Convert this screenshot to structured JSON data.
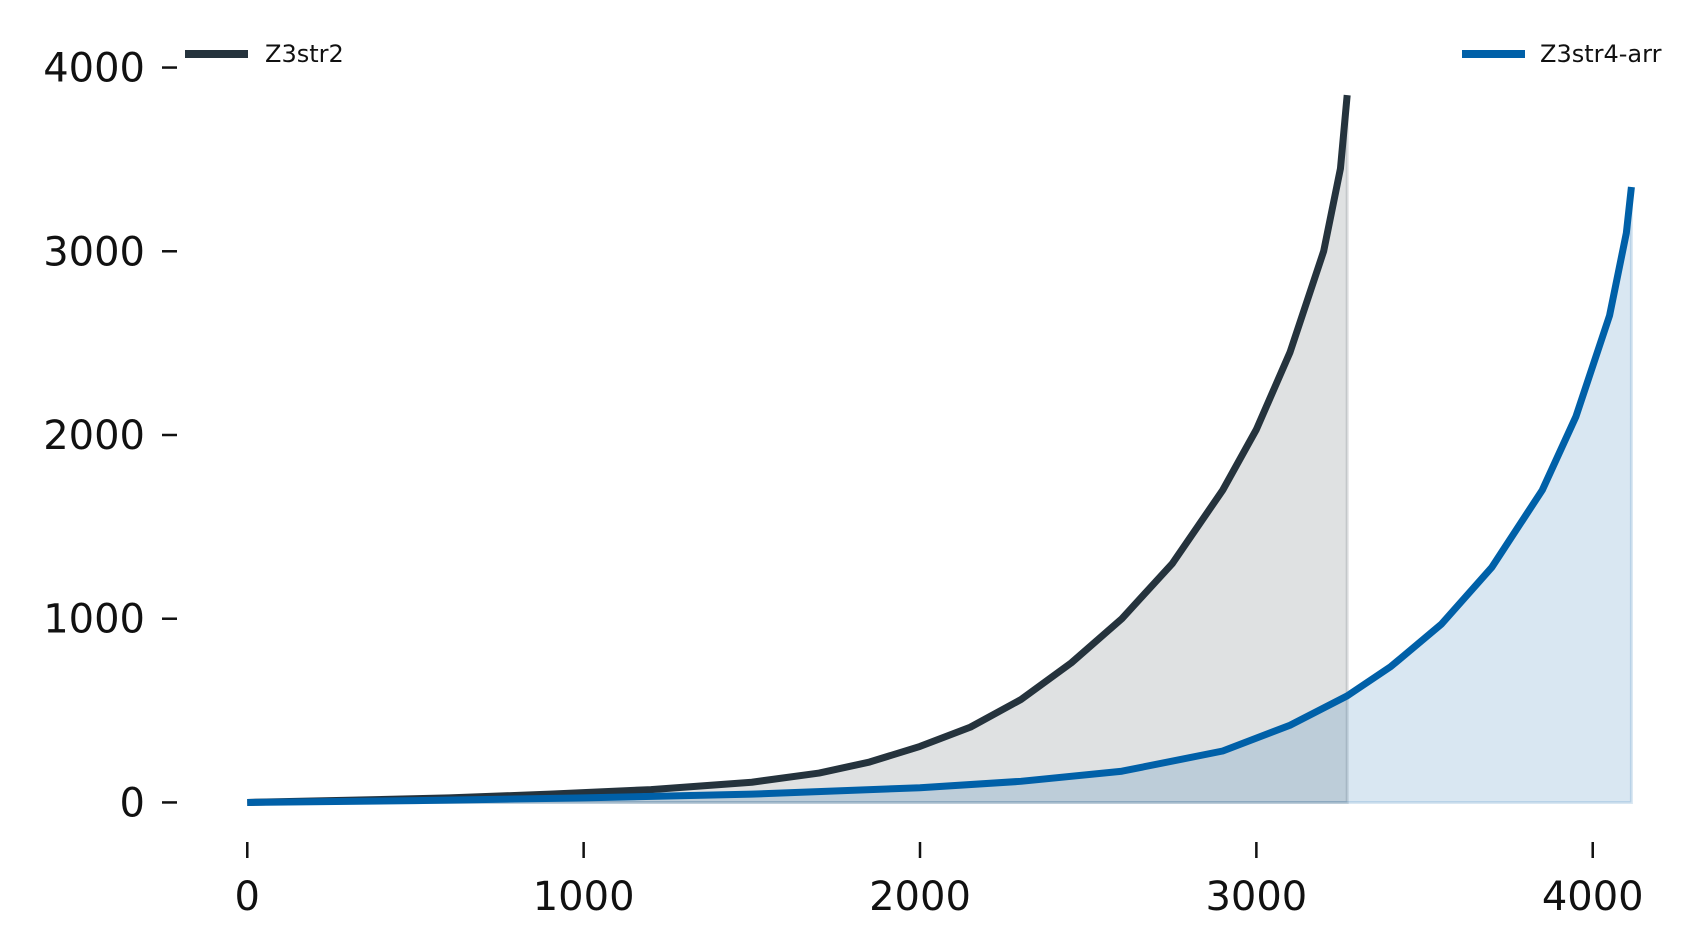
{
  "chart_data": {
    "type": "area",
    "title": "",
    "xlabel": "",
    "ylabel": "",
    "xlim": [
      -200,
      4200
    ],
    "ylim": [
      -150,
      4150
    ],
    "x_ticks": [
      0,
      1000,
      2000,
      3000,
      4000
    ],
    "y_ticks": [
      0,
      1000,
      2000,
      3000,
      4000
    ],
    "x_tick_labels": [
      "0",
      "1000",
      "2000",
      "3000",
      "4000"
    ],
    "y_tick_labels": [
      "0",
      "1000",
      "2000",
      "3000",
      "4000"
    ],
    "grid": false,
    "series": [
      {
        "name": "Z3str2",
        "color": "#25333d",
        "fill_color": "#25333d",
        "fill_opacity": 0.15,
        "legend_position": "top-left",
        "points": [
          [
            0,
            0
          ],
          [
            300,
            12
          ],
          [
            600,
            25
          ],
          [
            900,
            45
          ],
          [
            1200,
            70
          ],
          [
            1500,
            110
          ],
          [
            1700,
            160
          ],
          [
            1850,
            220
          ],
          [
            2000,
            305
          ],
          [
            2150,
            410
          ],
          [
            2300,
            560
          ],
          [
            2450,
            760
          ],
          [
            2600,
            1000
          ],
          [
            2750,
            1300
          ],
          [
            2900,
            1700
          ],
          [
            3000,
            2030
          ],
          [
            3100,
            2450
          ],
          [
            3200,
            3000
          ],
          [
            3250,
            3450
          ],
          [
            3270,
            3850
          ]
        ]
      },
      {
        "name": "Z3str4-arr",
        "color": "#0060a8",
        "fill_color": "#0060a8",
        "fill_opacity": 0.15,
        "legend_position": "top-right",
        "points": [
          [
            0,
            0
          ],
          [
            500,
            10
          ],
          [
            1000,
            25
          ],
          [
            1500,
            45
          ],
          [
            2000,
            80
          ],
          [
            2300,
            115
          ],
          [
            2600,
            170
          ],
          [
            2900,
            280
          ],
          [
            3100,
            420
          ],
          [
            3270,
            580
          ],
          [
            3400,
            740
          ],
          [
            3550,
            970
          ],
          [
            3700,
            1280
          ],
          [
            3850,
            1700
          ],
          [
            3950,
            2100
          ],
          [
            4050,
            2650
          ],
          [
            4100,
            3100
          ],
          [
            4115,
            3350
          ]
        ]
      }
    ]
  }
}
